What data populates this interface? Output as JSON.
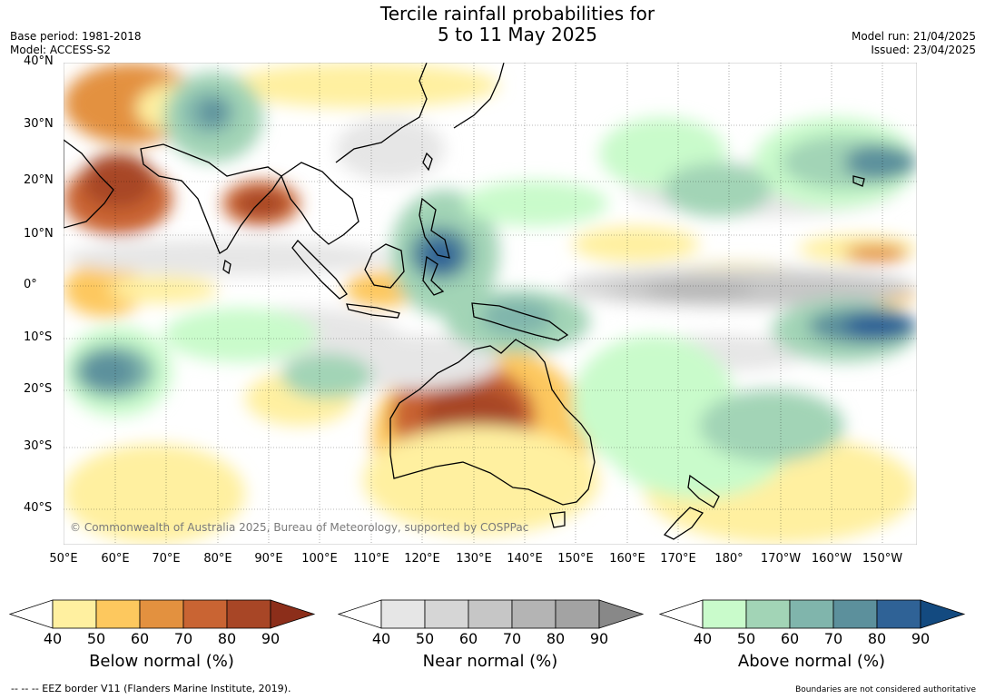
{
  "title": {
    "line1": "Tercile rainfall probabilities for",
    "line2": "5 to 11 May 2025"
  },
  "meta_left": {
    "base_period": "Base period: 1981-2018",
    "model": "Model: ACCESS-S2"
  },
  "meta_right": {
    "model_run": "Model run: 21/04/2025",
    "issued": "Issued: 23/04/2025"
  },
  "lat_labels": [
    "40°N",
    "30°N",
    "20°N",
    "10°N",
    "0°",
    "10°S",
    "20°S",
    "30°S",
    "40°S"
  ],
  "lon_labels": [
    "50°E",
    "60°E",
    "70°E",
    "80°E",
    "90°E",
    "100°E",
    "110°E",
    "120°E",
    "130°E",
    "140°E",
    "150°E",
    "160°E",
    "170°E",
    "180°",
    "170°W",
    "160°W",
    "150°W"
  ],
  "copyright": "© Commonwealth of Australia 2025, Bureau of Meteorology, supported by COSPPac",
  "colorbars": [
    {
      "label": "Below normal (%)",
      "ticks": [
        "40",
        "50",
        "60",
        "70",
        "80",
        "90"
      ],
      "colors": [
        "#fff0a0",
        "#fdc85e",
        "#e3913f",
        "#c96433",
        "#a84626",
        "#8c2e1a"
      ]
    },
    {
      "label": "Near normal (%)",
      "ticks": [
        "40",
        "50",
        "60",
        "70",
        "80",
        "90"
      ],
      "colors": [
        "#e6e6e6",
        "#d6d6d6",
        "#c6c6c6",
        "#b4b4b4",
        "#a3a3a3",
        "#888888"
      ]
    },
    {
      "label": "Above normal (%)",
      "ticks": [
        "40",
        "50",
        "60",
        "70",
        "80",
        "90"
      ],
      "colors": [
        "#c9fbcb",
        "#a2d4b6",
        "#80b5ac",
        "#5c909c",
        "#2f6296",
        "#134a80"
      ]
    }
  ],
  "footnote": "--  --  -- EEZ border V11 (Flanders Marine Institute, 2019).",
  "disclaimer": "Boundaries are not considered authoritative"
}
